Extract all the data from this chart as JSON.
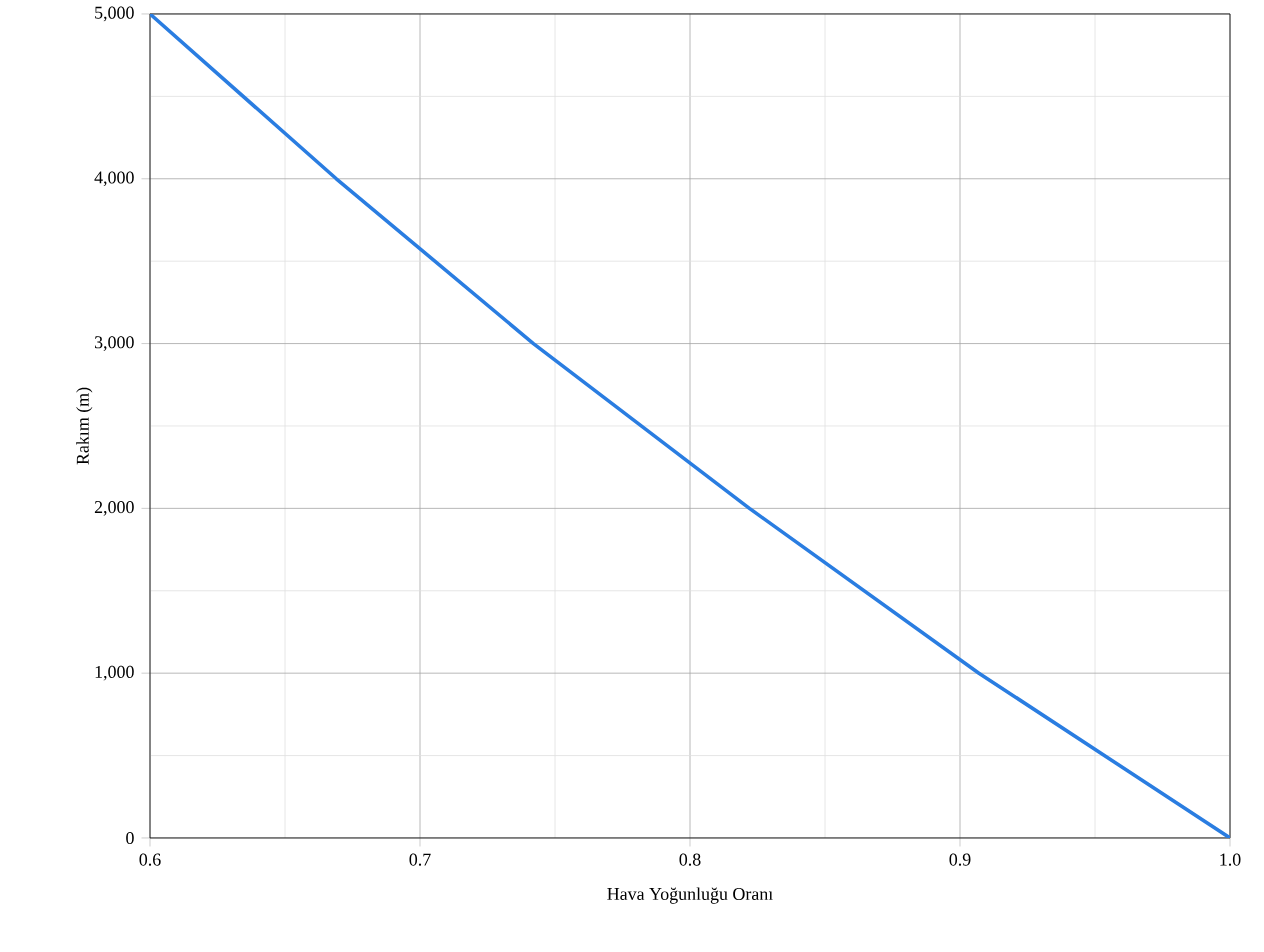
{
  "chart_data": {
    "type": "line",
    "xlabel": "Hava Yoğunluğu Oranı",
    "ylabel": "Rakım (m)",
    "x": [
      0.6,
      0.669,
      0.742,
      0.822,
      0.907,
      1.0
    ],
    "series": [
      {
        "color": "#2a7de1",
        "values": [
          5000,
          4000,
          3000,
          2000,
          1000,
          0
        ]
      }
    ],
    "xlim": [
      0.6,
      1.0
    ],
    "xticks": [
      0.6,
      0.7,
      0.8,
      0.9,
      {
        "value": 1.0,
        "label": "1.0"
      }
    ],
    "ylim": [
      0,
      5000
    ],
    "yticks": [
      0,
      {
        "value": 1000,
        "label": "1,000"
      },
      {
        "value": 2000,
        "label": "2,000"
      },
      {
        "value": 3000,
        "label": "3,000"
      },
      {
        "value": 4000,
        "label": "4,000"
      },
      {
        "value": 5000,
        "label": "5,000"
      }
    ],
    "grid": true,
    "marker": "none",
    "line_style": "solid"
  }
}
